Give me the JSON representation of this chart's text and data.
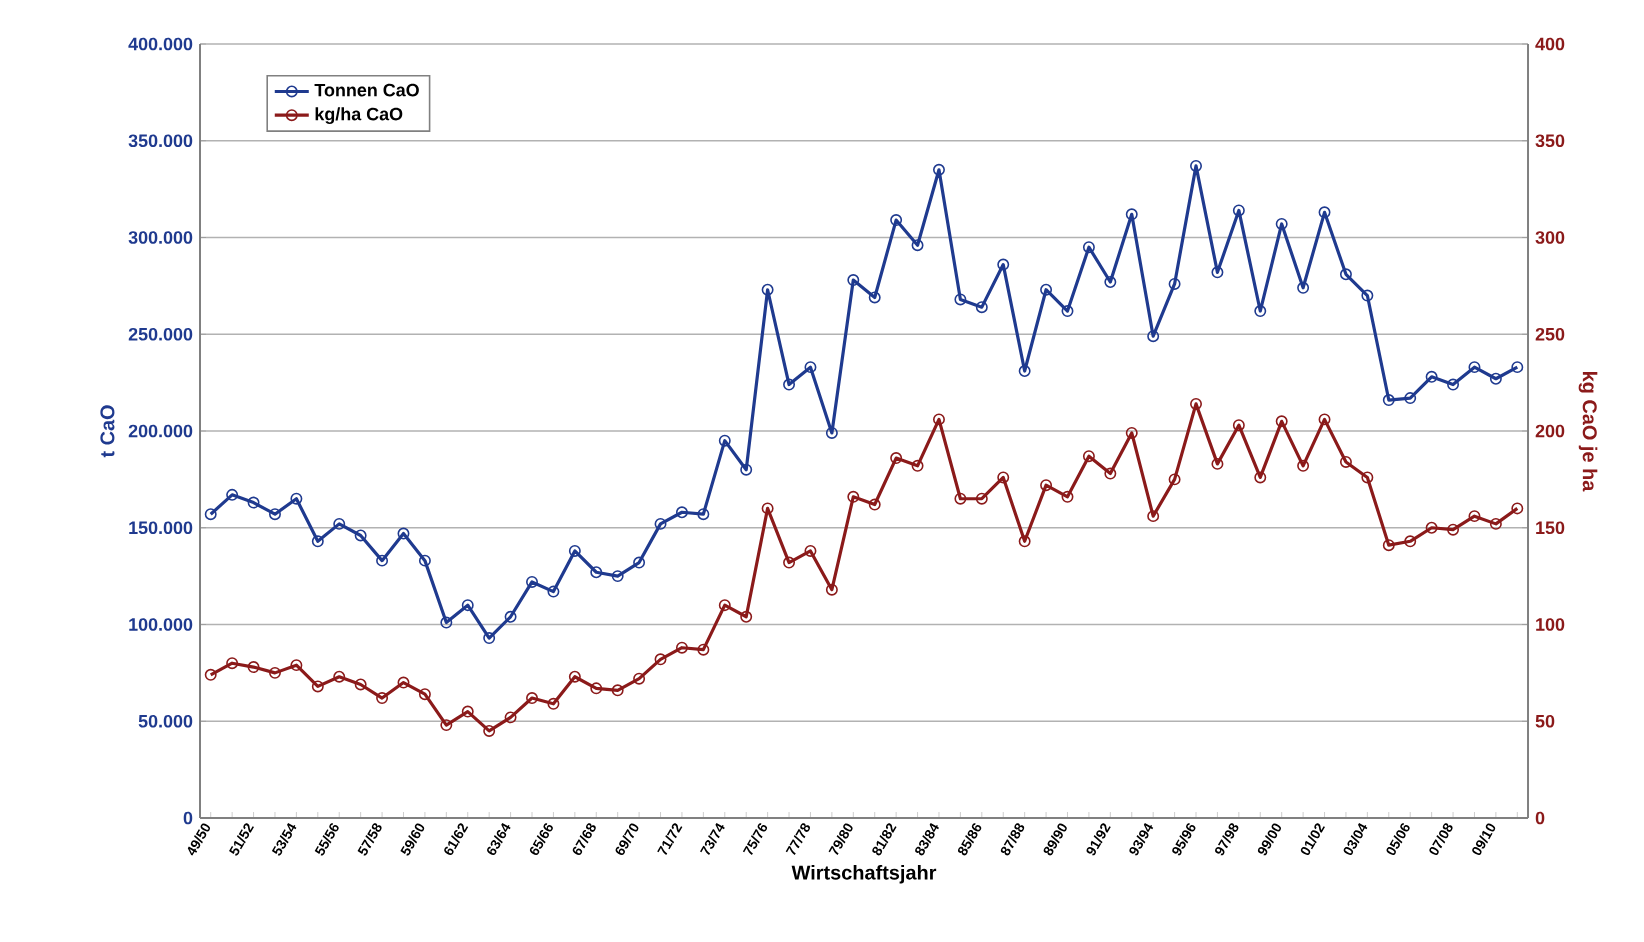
{
  "chart_data": {
    "type": "line",
    "xlabel": "Wirtschaftsjahr",
    "ylabel": "t CaO",
    "y2label": "kg CaO je ha",
    "categories": [
      "49/50",
      null,
      "51/52",
      null,
      "53/54",
      null,
      "55/56",
      null,
      "57/58",
      null,
      "59/60",
      null,
      "61/62",
      null,
      "63/64",
      null,
      "65/66",
      null,
      "67/68",
      null,
      "69/70",
      null,
      "71/72",
      null,
      "73/74",
      null,
      "75/76",
      null,
      "77/78",
      null,
      "79/80",
      null,
      "81/82",
      null,
      "83/84",
      null,
      "85/86",
      null,
      "87/88",
      null,
      "89/90",
      null,
      "91/92",
      null,
      "93/94",
      null,
      "95/96",
      null,
      "97/98",
      null,
      "99/00",
      null,
      "01/02",
      null,
      "03/04",
      null,
      "05/06",
      null,
      "07/08",
      null,
      "09/10",
      null
    ],
    "series": [
      {
        "name": "Tonnen CaO",
        "color": "#1f3a8f",
        "values": [
          157000,
          167000,
          163000,
          157000,
          165000,
          143000,
          152000,
          146000,
          133000,
          147000,
          133000,
          101000,
          110000,
          93000,
          104000,
          122000,
          117000,
          138000,
          127000,
          125000,
          132000,
          152000,
          158000,
          157000,
          195000,
          180000,
          273000,
          224000,
          233000,
          199000,
          278000,
          269000,
          309000,
          296000,
          335000,
          268000,
          264000,
          286000,
          231000,
          273000,
          262000,
          295000,
          277000,
          312000,
          249000,
          276000,
          337000,
          282000,
          314000,
          262000,
          307000,
          274000,
          313000,
          281000,
          270000,
          216000,
          217000,
          228000,
          224000,
          233000,
          227000,
          233000
        ]
      },
      {
        "name": "kg/ha CaO",
        "color": "#8b1a1a",
        "axis": "y2",
        "values": [
          74,
          80,
          78,
          75,
          79,
          68,
          73,
          69,
          62,
          70,
          64,
          48,
          55,
          45,
          52,
          62,
          59,
          73,
          67,
          66,
          72,
          82,
          88,
          87,
          110,
          104,
          160,
          132,
          138,
          118,
          166,
          162,
          186,
          182,
          206,
          165,
          165,
          176,
          143,
          172,
          166,
          187,
          178,
          199,
          156,
          175,
          214,
          183,
          203,
          176,
          205,
          182,
          206,
          184,
          176,
          141,
          143,
          150,
          149,
          156,
          152,
          160
        ]
      }
    ],
    "ylim": [
      0,
      400000
    ],
    "yticks": [
      {
        "value": 0,
        "label": "0"
      },
      {
        "value": 50000,
        "label": "50.000"
      },
      {
        "value": 100000,
        "label": "100.000"
      },
      {
        "value": 150000,
        "label": "150.000"
      },
      {
        "value": 200000,
        "label": "200.000"
      },
      {
        "value": 250000,
        "label": "250.000"
      },
      {
        "value": 300000,
        "label": "300.000"
      },
      {
        "value": 350000,
        "label": "350.000"
      },
      {
        "value": 400000,
        "label": "400.000"
      }
    ],
    "y2lim": [
      0,
      400
    ],
    "y2ticks": [
      0,
      50,
      100,
      150,
      200,
      250,
      300,
      350,
      400
    ],
    "grid": "y",
    "legend": "top left",
    "marker": "circle",
    "line_style": "solid"
  }
}
